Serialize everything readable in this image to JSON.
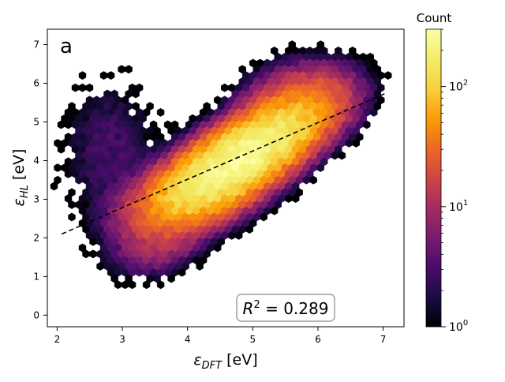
{
  "chart_data": {
    "type": "hexbin",
    "panel_label": "a",
    "xlabel_symbol": "ε",
    "xlabel_subscript": "DFT",
    "xlabel_unit": " [eV]",
    "ylabel_symbol": "ε",
    "ylabel_subscript": "HL",
    "ylabel_unit": " [eV]",
    "xlim": [
      1.85,
      7.32
    ],
    "ylim": [
      -0.3,
      7.4
    ],
    "x_ticks": [
      2,
      3,
      4,
      5,
      6,
      7
    ],
    "y_ticks": [
      0,
      1,
      2,
      3,
      4,
      5,
      6,
      7
    ],
    "x_tick_labels": [
      "2",
      "3",
      "4",
      "5",
      "6",
      "7"
    ],
    "y_tick_labels": [
      "0",
      "1",
      "2",
      "3",
      "4",
      "5",
      "6",
      "7"
    ],
    "fit_line": {
      "x": [
        2.07,
        7.05
      ],
      "y": [
        2.1,
        5.75
      ],
      "style": "dashed"
    },
    "annotation": {
      "text_prefix": "R",
      "text_exponent": "2",
      "text_suffix": " = 0.289"
    },
    "colorbar": {
      "title": "Count",
      "scale": "log",
      "range": [
        1,
        300
      ],
      "colormap": "inferno",
      "ticks": [
        {
          "value": 1,
          "base": "10",
          "exponent": "0"
        },
        {
          "value": 10,
          "base": "10",
          "exponent": "1"
        },
        {
          "value": 100,
          "base": "10",
          "exponent": "2"
        }
      ]
    },
    "density_components": [
      {
        "cx": 4.85,
        "cy": 4.1,
        "sx": 0.62,
        "sy": 0.72,
        "rho": 0.72,
        "peak": 260
      },
      {
        "cx": 4.1,
        "cy": 3.1,
        "sx": 0.55,
        "sy": 0.55,
        "rho": 0.45,
        "peak": 55
      },
      {
        "cx": 2.8,
        "cy": 4.3,
        "sx": 0.45,
        "sy": 1.1,
        "rho": 0.05,
        "peak": 3
      },
      {
        "cx": 5.7,
        "cy": 5.5,
        "sx": 0.45,
        "sy": 0.55,
        "rho": 0.2,
        "peak": 25
      },
      {
        "cx": 3.6,
        "cy": 1.8,
        "sx": 0.4,
        "sy": 0.45,
        "rho": 0.4,
        "peak": 9
      }
    ]
  }
}
